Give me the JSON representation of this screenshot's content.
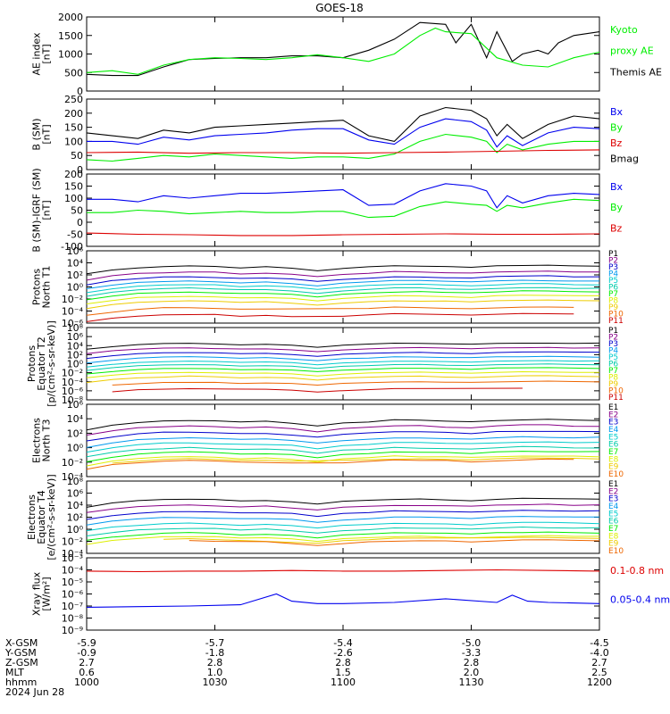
{
  "title": "GOES-18",
  "colors": {
    "black": "#000000",
    "green": "#00ee00",
    "blue": "#0000ee",
    "red": "#dd0000",
    "P": [
      "#000000",
      "#880088",
      "#0000cc",
      "#0099ee",
      "#00cccc",
      "#00ccaa",
      "#00ee00",
      "#ddee00",
      "#eecc00",
      "#ee6600",
      "#cc0000"
    ],
    "E": [
      "#000000",
      "#880088",
      "#0000cc",
      "#0099ee",
      "#00cccc",
      "#00ccaa",
      "#00ee00",
      "#ddee00",
      "#eecc00",
      "#ee6600",
      "#cc0000"
    ]
  },
  "footer": {
    "rows": [
      {
        "label": "X-GSM",
        "values": [
          "-5.9",
          "-5.7",
          "-5.4",
          "-5.0",
          "-4.5"
        ]
      },
      {
        "label": "Y-GSM",
        "values": [
          "-0.9",
          "-1.8",
          "-2.6",
          "-3.3",
          "-4.0"
        ]
      },
      {
        "label": "Z-GSM",
        "values": [
          "2.7",
          "2.8",
          "2.8",
          "2.8",
          "2.7"
        ]
      },
      {
        "label": "MLT",
        "values": [
          "0.6",
          "1.0",
          "1.5",
          "2.0",
          "2.5"
        ]
      },
      {
        "label": "hhmm",
        "values": [
          "1000",
          "1030",
          "1100",
          "1130",
          "1200"
        ]
      }
    ],
    "date": "2024 Jun 28"
  },
  "chart_data": [
    {
      "type": "line",
      "ylabel": [
        "AE index",
        "[nT]"
      ],
      "yticks": [
        "2000",
        "1500",
        "1000",
        "500",
        "0"
      ],
      "ylim": [
        0,
        2000
      ],
      "legend": [
        {
          "text": "Kyoto",
          "color": "green"
        },
        {
          "text": "proxy AE",
          "color": "green"
        },
        {
          "text": "Themis AE",
          "color": "black"
        }
      ],
      "series": [
        {
          "color": "black",
          "x": [
            0,
            5,
            10,
            15,
            20,
            25,
            30,
            35,
            40,
            45,
            50,
            55,
            60,
            65,
            70,
            72,
            75,
            78,
            80,
            83,
            85,
            88,
            90,
            92,
            95,
            100
          ],
          "y": [
            450,
            420,
            420,
            650,
            850,
            880,
            900,
            900,
            950,
            950,
            900,
            1100,
            1400,
            1850,
            1800,
            1300,
            1800,
            900,
            1600,
            800,
            1000,
            1100,
            1000,
            1300,
            1500,
            1600
          ]
        },
        {
          "color": "green",
          "x": [
            0,
            5,
            10,
            15,
            20,
            25,
            30,
            35,
            40,
            45,
            50,
            55,
            60,
            65,
            68,
            70,
            75,
            80,
            85,
            90,
            95,
            100
          ],
          "y": [
            500,
            550,
            450,
            700,
            850,
            900,
            880,
            850,
            900,
            980,
            900,
            800,
            1000,
            1500,
            1700,
            1600,
            1550,
            900,
            700,
            650,
            900,
            1050
          ]
        }
      ]
    },
    {
      "type": "line",
      "ylabel": [
        "B (SM)",
        "[nT]"
      ],
      "yticks": [
        "250",
        "200",
        "150",
        "100",
        "50",
        "0"
      ],
      "ylim": [
        0,
        250
      ],
      "legend": [
        {
          "text": "Bx",
          "color": "blue"
        },
        {
          "text": "By",
          "color": "green"
        },
        {
          "text": "Bz",
          "color": "red"
        },
        {
          "text": "Bmag",
          "color": "black"
        }
      ],
      "series": [
        {
          "color": "black",
          "x": [
            0,
            5,
            10,
            15,
            20,
            25,
            30,
            35,
            40,
            45,
            50,
            55,
            60,
            65,
            70,
            75,
            78,
            80,
            82,
            85,
            90,
            95,
            100
          ],
          "y": [
            130,
            120,
            110,
            140,
            130,
            150,
            155,
            160,
            165,
            170,
            175,
            120,
            100,
            190,
            220,
            210,
            180,
            120,
            160,
            110,
            160,
            190,
            180
          ]
        },
        {
          "color": "blue",
          "x": [
            0,
            5,
            10,
            15,
            20,
            25,
            30,
            35,
            40,
            45,
            50,
            55,
            60,
            65,
            70,
            75,
            78,
            80,
            82,
            85,
            90,
            95,
            100
          ],
          "y": [
            100,
            100,
            90,
            115,
            105,
            120,
            125,
            130,
            140,
            145,
            145,
            105,
            90,
            150,
            180,
            170,
            140,
            80,
            120,
            85,
            130,
            150,
            145
          ]
        },
        {
          "color": "green",
          "x": [
            0,
            5,
            10,
            15,
            20,
            25,
            30,
            35,
            40,
            45,
            50,
            55,
            60,
            65,
            70,
            75,
            78,
            80,
            82,
            85,
            90,
            95,
            100
          ],
          "y": [
            35,
            30,
            40,
            50,
            45,
            55,
            50,
            45,
            40,
            45,
            45,
            40,
            55,
            100,
            125,
            115,
            100,
            60,
            90,
            70,
            90,
            100,
            100
          ]
        },
        {
          "color": "red",
          "x": [
            0,
            10,
            20,
            30,
            40,
            50,
            60,
            70,
            80,
            90,
            100
          ],
          "y": [
            60,
            62,
            58,
            60,
            60,
            58,
            60,
            62,
            65,
            68,
            70
          ]
        }
      ]
    },
    {
      "type": "line",
      "ylabel": [
        "B (SM)-IGRF (SM)",
        "[nT]"
      ],
      "yticks": [
        "200",
        "150",
        "100",
        "50",
        "0",
        "-50",
        "-100"
      ],
      "ylim": [
        -100,
        200
      ],
      "legend": [
        {
          "text": "Bx",
          "color": "blue"
        },
        {
          "text": "By",
          "color": "green"
        },
        {
          "text": "Bz",
          "color": "red"
        }
      ],
      "series": [
        {
          "color": "blue",
          "x": [
            0,
            5,
            10,
            15,
            20,
            25,
            30,
            35,
            40,
            45,
            50,
            55,
            60,
            65,
            70,
            75,
            78,
            80,
            82,
            85,
            90,
            95,
            100
          ],
          "y": [
            95,
            95,
            85,
            110,
            100,
            110,
            120,
            120,
            125,
            130,
            135,
            70,
            75,
            130,
            160,
            150,
            130,
            60,
            110,
            80,
            110,
            120,
            115
          ]
        },
        {
          "color": "green",
          "x": [
            0,
            5,
            10,
            15,
            20,
            25,
            30,
            35,
            40,
            45,
            50,
            55,
            60,
            65,
            70,
            75,
            78,
            80,
            82,
            85,
            90,
            95,
            100
          ],
          "y": [
            40,
            40,
            50,
            45,
            35,
            40,
            45,
            40,
            40,
            45,
            45,
            20,
            25,
            65,
            85,
            75,
            70,
            45,
            70,
            60,
            80,
            95,
            90
          ]
        },
        {
          "color": "red",
          "x": [
            0,
            10,
            20,
            30,
            40,
            50,
            60,
            70,
            80,
            90,
            100
          ],
          "y": [
            -45,
            -50,
            -52,
            -55,
            -55,
            -52,
            -50,
            -48,
            -50,
            -50,
            -48
          ]
        }
      ]
    },
    {
      "type": "line",
      "log": true,
      "ylabel": [
        "Protons",
        "North T1"
      ],
      "yticks": [
        "10⁶",
        "10⁴",
        "10²",
        "10⁰",
        "10⁻²",
        "10⁻⁴",
        "10⁻⁶"
      ],
      "ylim": [
        -6,
        6
      ],
      "legend_small": [
        "P1",
        "P2",
        "P3",
        "P4",
        "P5",
        "P6",
        "P7",
        "P8",
        "P9",
        "P10",
        "P11"
      ],
      "levels": [
        3.5,
        2.5,
        1.7,
        1.0,
        0.4,
        -0.2,
        -0.8,
        -1.5,
        -2.3,
        -3.4,
        -4.5
      ],
      "group": "P"
    },
    {
      "type": "line",
      "log": true,
      "ylabel": [
        "Protons",
        "Equator T2",
        "[p/(cm²-s-sr-keV)]"
      ],
      "yticks": [
        "10⁸",
        "10⁶",
        "10⁴",
        "10²",
        "10⁰",
        "10⁻²",
        "10⁻⁴",
        "10⁻⁶",
        "10⁻⁸"
      ],
      "ylim": [
        -8,
        8
      ],
      "legend_small": [
        "P1",
        "P2",
        "P3",
        "P4",
        "P5",
        "P6",
        "P7",
        "P8",
        "P9",
        "P10",
        "P11"
      ],
      "levels": [
        4.5,
        3.5,
        2.5,
        1.5,
        0.6,
        -0.2,
        -1.0,
        -1.9,
        -2.8,
        -4.0,
        -5.5
      ],
      "group": "P"
    },
    {
      "type": "line",
      "log": true,
      "ylabel": [
        "Electrons",
        "North T3"
      ],
      "yticks": [
        "10⁶",
        "10⁴",
        "10²",
        "10⁰",
        "10⁻²",
        "10⁻⁴"
      ],
      "ylim": [
        -4,
        6
      ],
      "legend_small": [
        "E1",
        "E2",
        "E3",
        "E4",
        "E5",
        "E6",
        "E7",
        "E8",
        "E9",
        "E10"
      ],
      "levels": [
        3.8,
        3.0,
        2.2,
        1.4,
        0.7,
        0.0,
        -0.6,
        -1.2,
        -1.5,
        -1.7
      ],
      "group": "E"
    },
    {
      "type": "line",
      "log": true,
      "ylabel": [
        "Electrons",
        "Equator T4",
        "[e/(cm²-s-sr-keV)]"
      ],
      "yticks": [
        "10⁸",
        "10⁶",
        "10⁴",
        "10²",
        "10⁰",
        "10⁻²",
        "10⁻⁴"
      ],
      "ylim": [
        -4,
        8
      ],
      "legend_small": [
        "E1",
        "E2",
        "E3",
        "E4",
        "E5",
        "E6",
        "E7",
        "E8",
        "E9",
        "E10"
      ],
      "levels": [
        5.0,
        4.0,
        3.0,
        2.0,
        1.0,
        0.2,
        -0.6,
        -1.2,
        -1.5,
        -1.9
      ],
      "group": "E"
    },
    {
      "type": "line",
      "log": true,
      "ylabel": [
        "Xray flux",
        "[W/m²]"
      ],
      "yticks": [
        "10⁻³",
        "10⁻⁴",
        "10⁻⁵",
        "10⁻⁶",
        "10⁻⁷",
        "10⁻⁸",
        "10⁻⁹"
      ],
      "ylim": [
        -9,
        -3
      ],
      "legend": [
        {
          "text": "0.1-0.8 nm",
          "color": "red"
        },
        {
          "text": "0.05-0.4 nm",
          "color": "blue"
        }
      ],
      "series": [
        {
          "color": "red",
          "x": [
            0,
            10,
            20,
            30,
            40,
            50,
            60,
            70,
            80,
            90,
            100
          ],
          "y": [
            -4.1,
            -4.15,
            -4.1,
            -4.1,
            -4.05,
            -4.1,
            -4.1,
            -4.05,
            -4.0,
            -4.05,
            -4.1
          ]
        },
        {
          "color": "blue",
          "x": [
            0,
            10,
            20,
            30,
            37,
            40,
            45,
            50,
            60,
            70,
            80,
            83,
            86,
            90,
            100
          ],
          "y": [
            -7.1,
            -7.05,
            -7.0,
            -6.9,
            -6.0,
            -6.6,
            -6.8,
            -6.8,
            -6.7,
            -6.4,
            -6.7,
            -6.1,
            -6.6,
            -6.7,
            -6.8
          ]
        }
      ]
    }
  ]
}
